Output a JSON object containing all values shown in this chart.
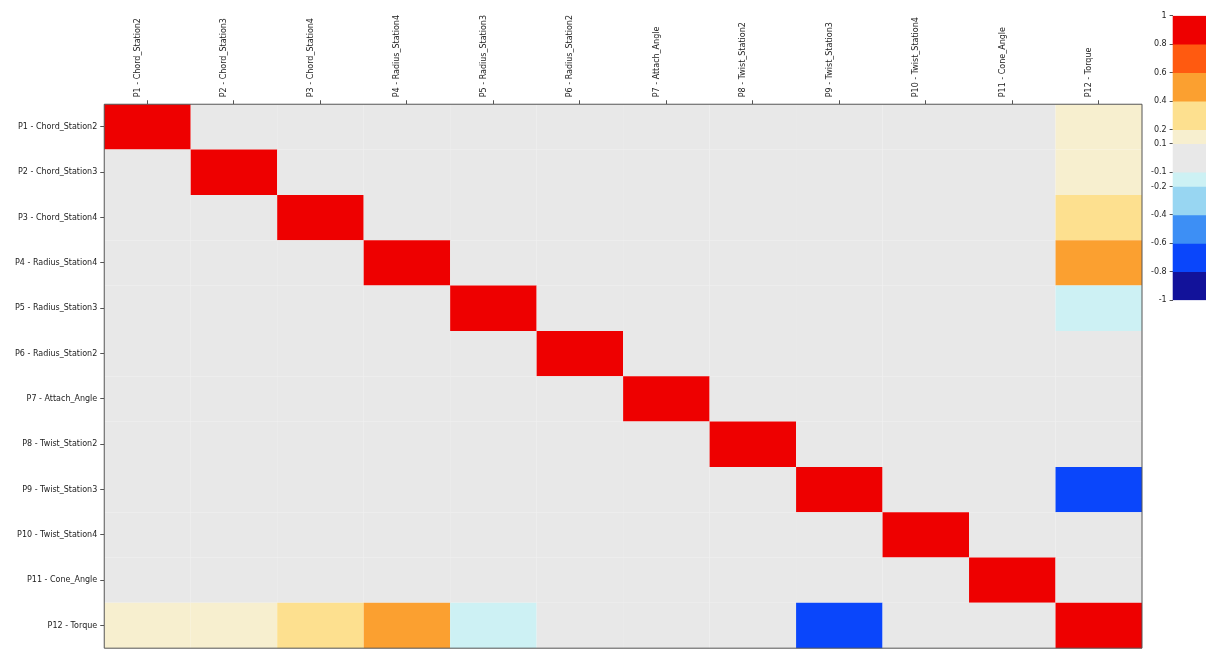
{
  "chart_data": {
    "type": "heatmap",
    "categories": [
      "P1 - Chord_Station2",
      "P2 - Chord_Station3",
      "P3 - Chord_Station4",
      "P4 - Radius_Station4",
      "P5 - Radius_Station3",
      "P6 - Radius_Station2",
      "P7 - Attach_Angle",
      "P8 - Twist_Station2",
      "P9 - Twist_Station3",
      "P10 - Twist_Station4",
      "P11 - Cone_Angle",
      "P12 - Torque"
    ],
    "y_categories": [
      "P1 - Chord_Station2",
      "P2 - Chord_Station3",
      "P3 - Chord_Station4",
      "P4 - Radius_Station4",
      "P5 - Radius_Station3",
      "P6 - Radius_Station2",
      "P7 - Attach_Angle",
      "P8 - Twist_Station2",
      "P9 - Twist_Station3",
      "P10 - Twist_Station4",
      "P11 - Cone_Angle",
      "P12 - Torque"
    ],
    "cells": [
      [
        1,
        0,
        0,
        0,
        0,
        0,
        0,
        0,
        0,
        0,
        0,
        0.15
      ],
      [
        0,
        1,
        0,
        0,
        0,
        0,
        0,
        0,
        0,
        0,
        0,
        0.15
      ],
      [
        0,
        0,
        1,
        0,
        0,
        0,
        0,
        0,
        0,
        0,
        0,
        0.3
      ],
      [
        0,
        0,
        0,
        1,
        0,
        0,
        0,
        0,
        0,
        0,
        0,
        0.5
      ],
      [
        0,
        0,
        0,
        0,
        1,
        0,
        0,
        0,
        0,
        0,
        0,
        -0.15
      ],
      [
        0,
        0,
        0,
        0,
        0,
        1,
        0,
        0,
        0,
        0,
        0,
        0
      ],
      [
        0,
        0,
        0,
        0,
        0,
        0,
        1,
        0,
        0,
        0,
        0,
        0
      ],
      [
        0,
        0,
        0,
        0,
        0,
        0,
        0,
        1,
        0,
        0,
        0,
        0
      ],
      [
        0,
        0,
        0,
        0,
        0,
        0,
        0,
        0,
        1,
        0,
        0,
        -0.7
      ],
      [
        0,
        0,
        0,
        0,
        0,
        0,
        0,
        0,
        0,
        1,
        0,
        0
      ],
      [
        0,
        0,
        0,
        0,
        0,
        0,
        0,
        0,
        0,
        0,
        1,
        0
      ],
      [
        0.15,
        0.15,
        0.3,
        0.5,
        -0.15,
        0,
        0,
        0,
        -0.7,
        0,
        0,
        1
      ]
    ],
    "clim": [
      -1,
      1
    ],
    "cticks": [
      1,
      0.8,
      0.6,
      0.4,
      0.2,
      0.1,
      -0.1,
      -0.2,
      -0.4,
      -0.6,
      -0.8,
      -1
    ]
  }
}
